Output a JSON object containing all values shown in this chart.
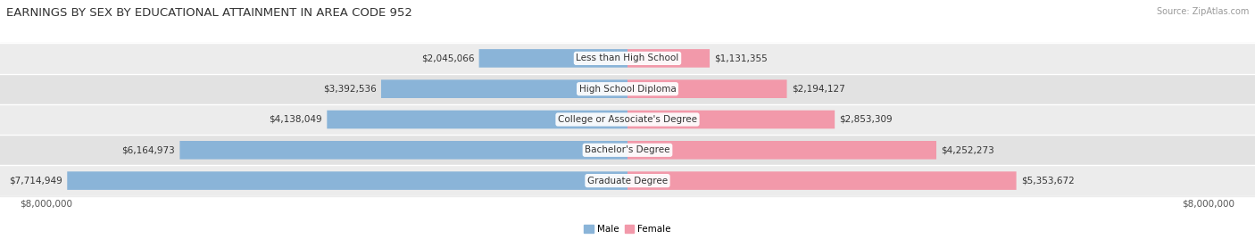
{
  "title": "EARNINGS BY SEX BY EDUCATIONAL ATTAINMENT IN AREA CODE 952",
  "source": "Source: ZipAtlas.com",
  "categories": [
    "Less than High School",
    "High School Diploma",
    "College or Associate's Degree",
    "Bachelor's Degree",
    "Graduate Degree"
  ],
  "male_values": [
    2045066,
    3392536,
    4138049,
    6164973,
    7714949
  ],
  "female_values": [
    1131355,
    2194127,
    2853309,
    4252273,
    5353672
  ],
  "male_labels": [
    "$2,045,066",
    "$3,392,536",
    "$4,138,049",
    "$6,164,973",
    "$7,714,949"
  ],
  "female_labels": [
    "$1,131,355",
    "$2,194,127",
    "$2,853,309",
    "$4,252,273",
    "$5,353,672"
  ],
  "male_color": "#8ab4d8",
  "female_color": "#f299aa",
  "row_bg_colors": [
    "#ececec",
    "#e2e2e2"
  ],
  "axis_max": 8000000,
  "axis_label": "$8,000,000",
  "legend_male": "Male",
  "legend_female": "Female",
  "title_fontsize": 9.5,
  "label_fontsize": 7.5,
  "category_fontsize": 7.5,
  "source_fontsize": 7.0
}
